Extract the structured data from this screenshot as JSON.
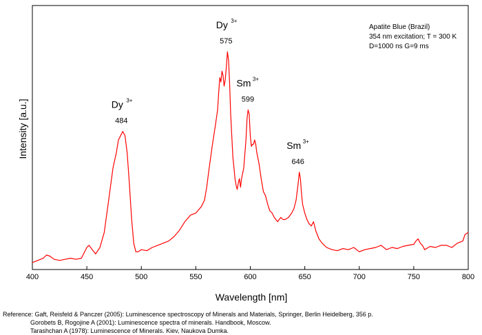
{
  "chart_data": {
    "type": "line",
    "xlabel": "Wavelength [nm]",
    "ylabel": "Intensity [a.u.]",
    "xlim": [
      400,
      800
    ],
    "ylim": [
      0,
      1
    ],
    "xticks": [
      400,
      450,
      500,
      550,
      600,
      650,
      700,
      750,
      800
    ],
    "grid": false,
    "legend": "none",
    "series_color": "#ff0000",
    "info": [
      "Apatite Blue (Brazil)",
      "354 nm excitation; T = 300 K",
      "D=1000 ns  G=9 ms"
    ],
    "peaks": [
      {
        "ion": "Dy",
        "sup": "3+",
        "wavelength": "484",
        "x": 483,
        "y": 0.62
      },
      {
        "ion": "Dy",
        "sup": "3+",
        "wavelength": "575",
        "x": 579,
        "y": 0.99
      },
      {
        "ion": "Sm",
        "sup": "3+",
        "wavelength": "599",
        "x": 599,
        "y": 0.72
      },
      {
        "ion": "Sm",
        "sup": "3+",
        "wavelength": "646",
        "x": 645,
        "y": 0.43
      }
    ],
    "series": [
      {
        "x": [
          400,
          405,
          410,
          413,
          416,
          420,
          425,
          430,
          435,
          440,
          445,
          450,
          452,
          455,
          458,
          462,
          466,
          470,
          474,
          477,
          479,
          481,
          483,
          485,
          487,
          489,
          491,
          493,
          495,
          497,
          500,
          505,
          510,
          515,
          520,
          525,
          530,
          535,
          540,
          545,
          550,
          555,
          558,
          560,
          562,
          565,
          568,
          570,
          571,
          572,
          573,
          574,
          575,
          576,
          577,
          578,
          579,
          580,
          581,
          582,
          583,
          584,
          585,
          586,
          587,
          588,
          589,
          590,
          591,
          592,
          594,
          596,
          597,
          598,
          599,
          600,
          601,
          602,
          603,
          604,
          605,
          606,
          608,
          610,
          612,
          614,
          616,
          618,
          620,
          622,
          625,
          628,
          630,
          632,
          635,
          638,
          640,
          642,
          644,
          645,
          646,
          647,
          648,
          650,
          652,
          654,
          656,
          658,
          660,
          663,
          666,
          670,
          675,
          680,
          685,
          690,
          695,
          700,
          705,
          710,
          715,
          720,
          725,
          730,
          735,
          740,
          745,
          750,
          752,
          754,
          756,
          758,
          760,
          765,
          770,
          775,
          780,
          785,
          790,
          795,
          797,
          800
        ],
        "y": [
          0.01,
          0.02,
          0.03,
          0.045,
          0.04,
          0.025,
          0.02,
          0.025,
          0.03,
          0.025,
          0.03,
          0.08,
          0.09,
          0.07,
          0.05,
          0.08,
          0.15,
          0.3,
          0.45,
          0.52,
          0.58,
          0.6,
          0.62,
          0.6,
          0.52,
          0.38,
          0.22,
          0.1,
          0.06,
          0.06,
          0.07,
          0.065,
          0.08,
          0.09,
          0.1,
          0.11,
          0.13,
          0.16,
          0.2,
          0.23,
          0.24,
          0.27,
          0.3,
          0.36,
          0.44,
          0.55,
          0.65,
          0.72,
          0.8,
          0.87,
          0.85,
          0.9,
          0.88,
          0.83,
          0.86,
          0.92,
          0.99,
          0.95,
          0.85,
          0.7,
          0.6,
          0.5,
          0.45,
          0.4,
          0.37,
          0.35,
          0.38,
          0.4,
          0.36,
          0.4,
          0.45,
          0.58,
          0.68,
          0.72,
          0.7,
          0.6,
          0.55,
          0.56,
          0.56,
          0.58,
          0.56,
          0.52,
          0.47,
          0.4,
          0.34,
          0.32,
          0.28,
          0.25,
          0.24,
          0.22,
          0.2,
          0.22,
          0.21,
          0.21,
          0.22,
          0.24,
          0.26,
          0.3,
          0.38,
          0.43,
          0.4,
          0.33,
          0.28,
          0.24,
          0.21,
          0.19,
          0.18,
          0.2,
          0.16,
          0.12,
          0.1,
          0.08,
          0.07,
          0.065,
          0.075,
          0.07,
          0.08,
          0.06,
          0.07,
          0.075,
          0.08,
          0.09,
          0.07,
          0.08,
          0.075,
          0.085,
          0.09,
          0.095,
          0.11,
          0.12,
          0.1,
          0.09,
          0.07,
          0.085,
          0.08,
          0.09,
          0.09,
          0.08,
          0.1,
          0.11,
          0.14,
          0.15
        ]
      }
    ]
  },
  "references": [
    "Reference: Gaft, Reisfeld & Panczer (2005): Luminescence spectroscopy of Minerals and Materials, Springer, Berlin Heidelberg, 356 p.",
    "Gorobets B, Rogojine A (2001): Luminescence spectra of minerals. Handbook, Moscow.",
    "Tarashchan A (1978): Luminescence of Minerals. Kiev, Naukova Dumka."
  ]
}
